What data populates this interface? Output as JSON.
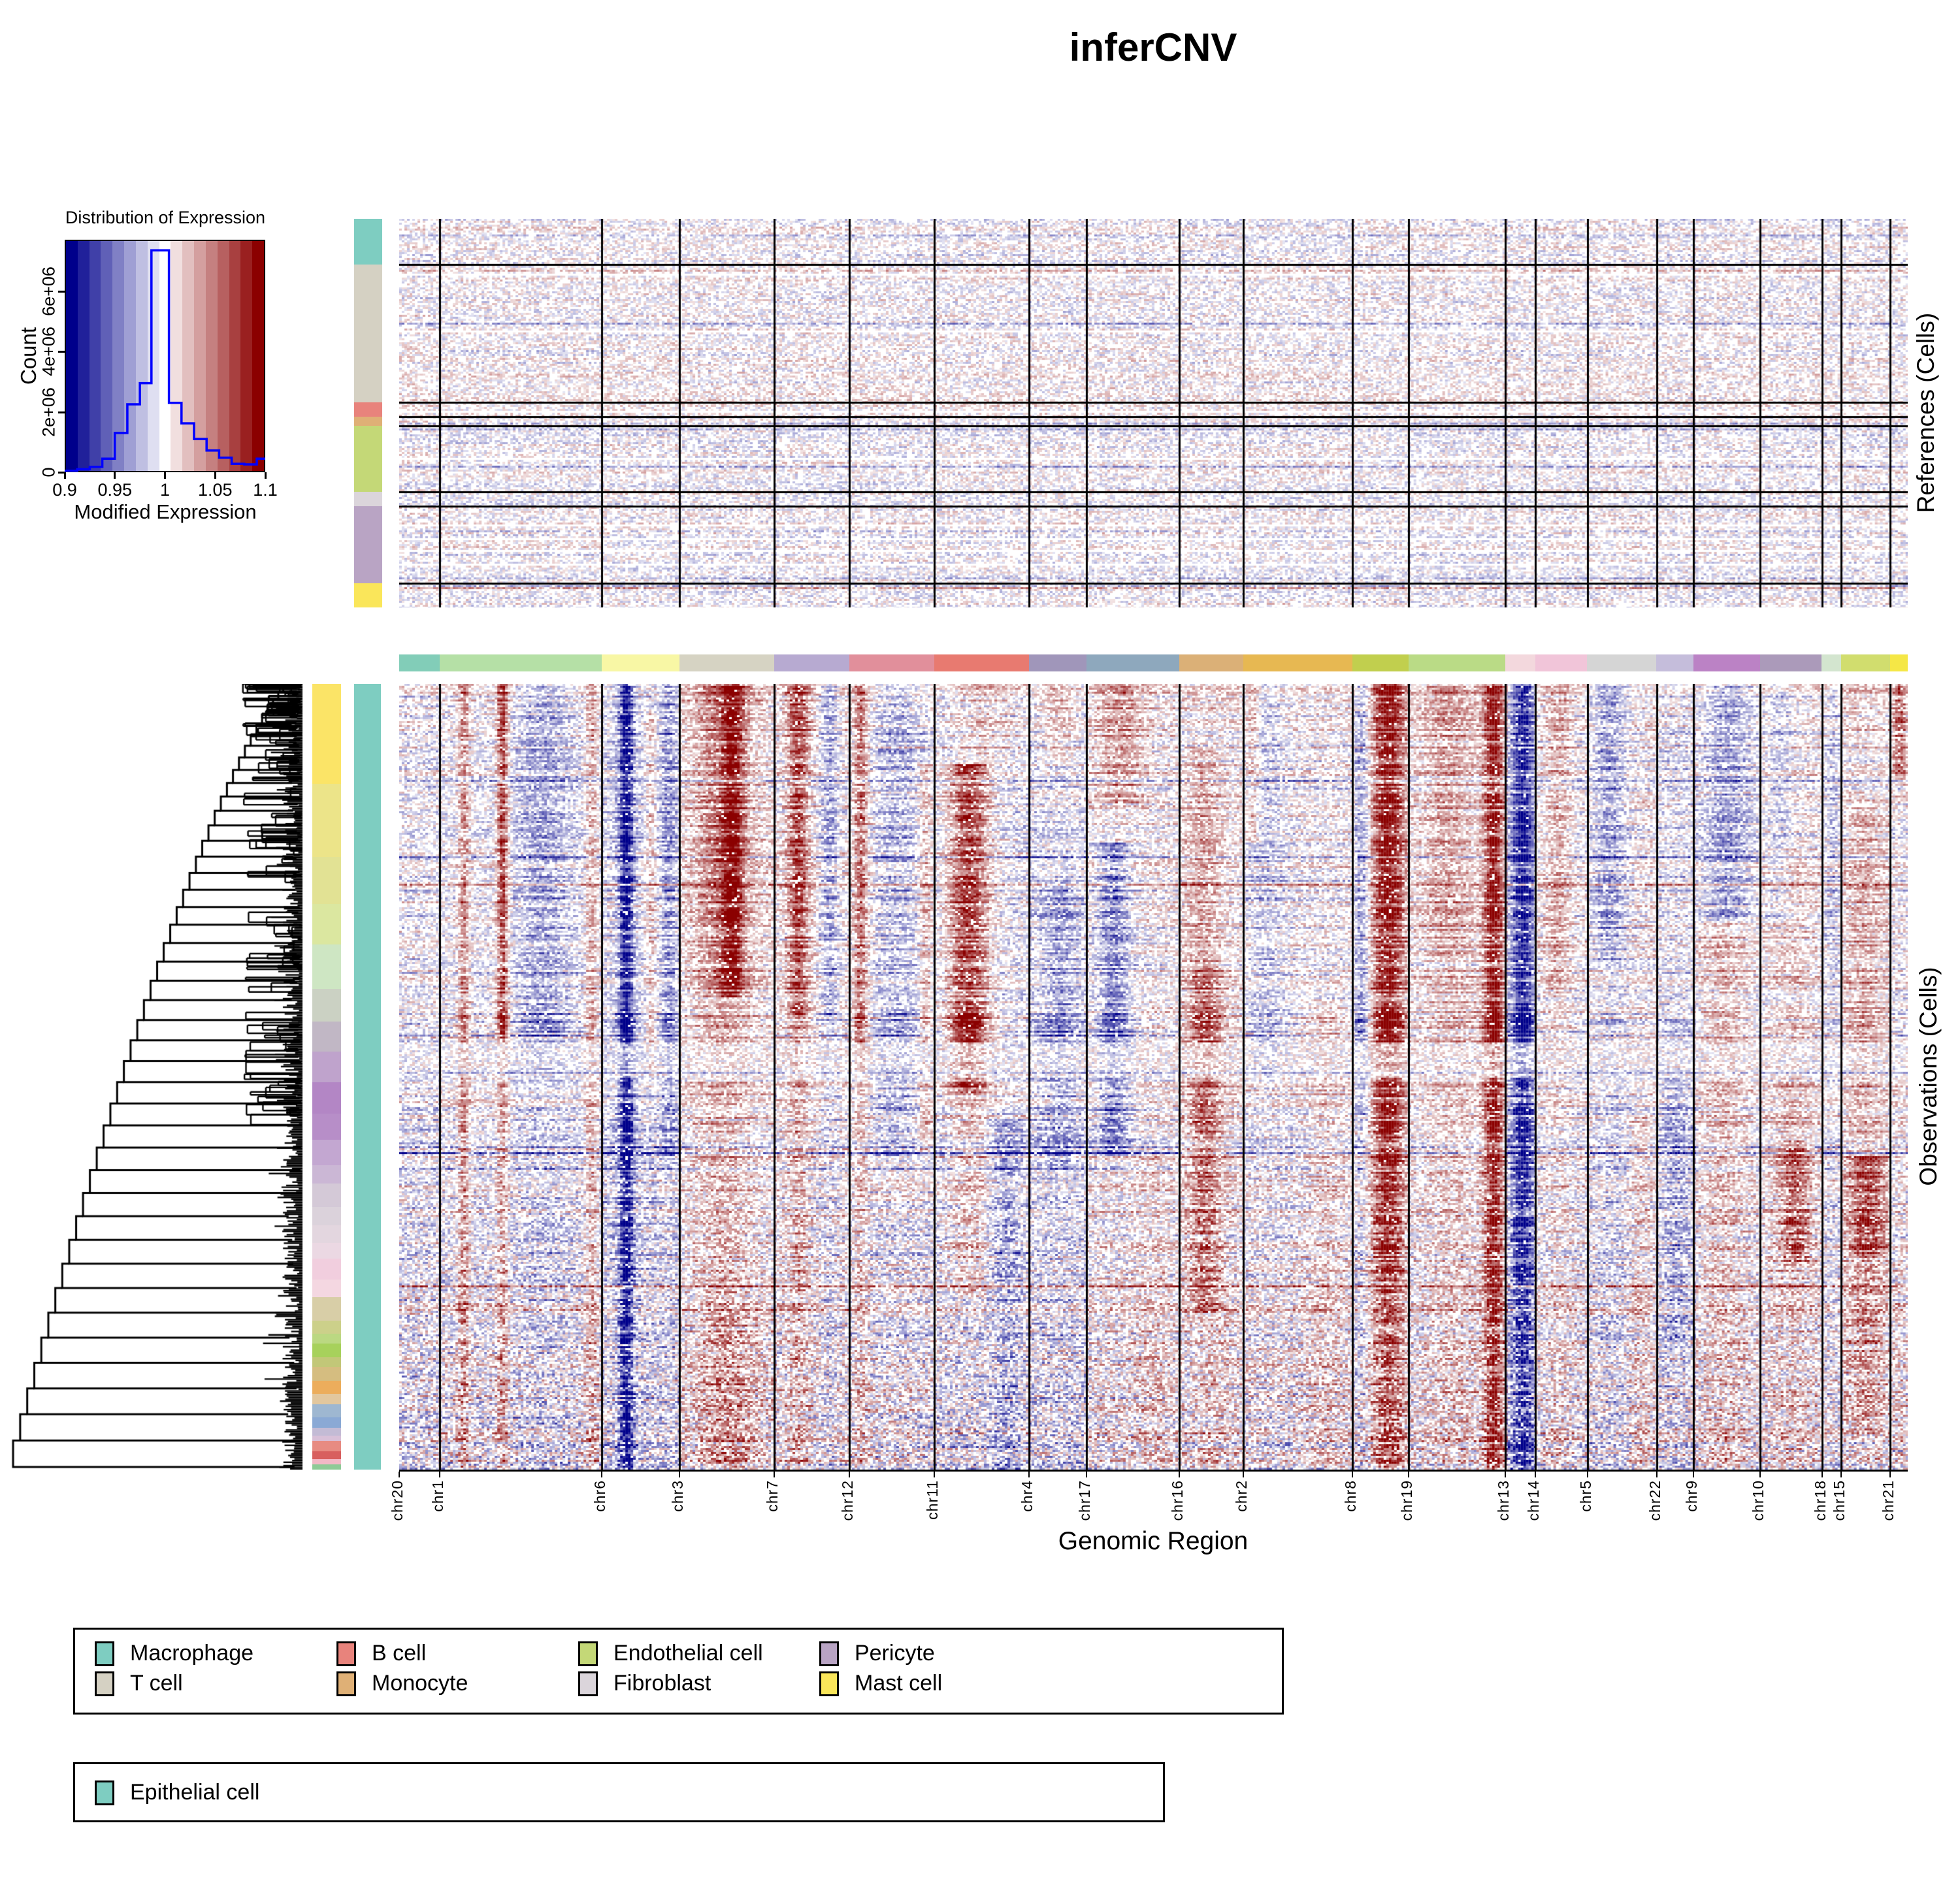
{
  "title": "inferCNV",
  "distribution": {
    "title": "Distribution of Expression",
    "xlabel": "Modified Expression",
    "ylabel": "Count",
    "xticks": [
      "0.9",
      "0.95",
      "1",
      "1.05",
      "1.1"
    ],
    "xtick_values": [
      0.9,
      0.95,
      1.0,
      1.05,
      1.1
    ],
    "yticks": [
      "0",
      "2e+06",
      "4e+06",
      "6e+06"
    ],
    "ytick_values": [
      0,
      2000000,
      4000000,
      6000000
    ],
    "line_color": "#0000ff"
  },
  "references": {
    "side_label": "References (Cells)"
  },
  "observations": {
    "side_label": "Observations (Cells)",
    "epithelial_bar_color": "#7ecdc1",
    "dendrogram": {
      "chain_joins": 44,
      "leaf_fringe_step": 2.6
    }
  },
  "xaxis": {
    "label": "Genomic Region"
  },
  "legend_celltypes": {
    "items": [
      {
        "label": "Macrophage",
        "color": "#7ecdc1"
      },
      {
        "label": "T cell",
        "color": "#d5d1c3"
      },
      {
        "label": "B cell",
        "color": "#e8837c"
      },
      {
        "label": "Monocyte",
        "color": "#dfb076"
      },
      {
        "label": "Endothelial cell",
        "color": "#c4d877"
      },
      {
        "label": "Fibroblast",
        "color": "#dbd5db"
      },
      {
        "label": "Pericyte",
        "color": "#b9a4c4"
      },
      {
        "label": "Mast cell",
        "color": "#fae65a"
      }
    ]
  },
  "legend_observations": {
    "items": [
      {
        "label": "Epithelial cell",
        "color": "#7ecdc1"
      }
    ]
  },
  "chart_data": {
    "type": "heatmap",
    "title": "inferCNV",
    "xlabel": "Genomic Region",
    "colormap": {
      "low": "#00008b",
      "mid": "#ffffff",
      "high": "#8b0000",
      "domain": [
        0.9,
        1.0,
        1.1
      ],
      "bands": 17
    },
    "expression_histogram": {
      "type": "histogram",
      "title": "Distribution of Expression",
      "xlabel": "Modified Expression",
      "ylabel": "Count",
      "xlim": [
        0.9,
        1.1
      ],
      "ylim": [
        0,
        7700000
      ],
      "bins": [
        [
          0.9,
          0.9125,
          50000
        ],
        [
          0.9125,
          0.925,
          100000
        ],
        [
          0.925,
          0.9375,
          180000
        ],
        [
          0.9375,
          0.95,
          450000
        ],
        [
          0.95,
          0.9625,
          1300000
        ],
        [
          0.9625,
          0.975,
          2250000
        ],
        [
          0.975,
          0.9865,
          2950000
        ],
        [
          0.9865,
          1.004,
          7350000
        ],
        [
          1.004,
          1.0165,
          2300000
        ],
        [
          1.0165,
          1.029,
          1620000
        ],
        [
          1.029,
          1.0415,
          1100000
        ],
        [
          1.0415,
          1.054,
          720000
        ],
        [
          1.054,
          1.0665,
          480000
        ],
        [
          1.0665,
          1.079,
          280000
        ],
        [
          1.079,
          1.0915,
          260000
        ],
        [
          1.0915,
          1.1,
          450000
        ]
      ]
    },
    "chromosomes": [
      {
        "name": "chr20",
        "width_frac": 0.0269,
        "bar_color": "#82cdb8",
        "cnv_base": -0.06,
        "cnv_bands": []
      },
      {
        "name": "chr1",
        "width_frac": 0.1074,
        "bar_color": "#b5e0a6",
        "cnv_base": -0.04,
        "cnv_bands": [
          {
            "p": 0.14,
            "w": 0.035,
            "v": 0.5,
            "r0": 0,
            "r1": 1
          },
          {
            "p": 0.38,
            "w": 0.035,
            "v": 0.85,
            "r0": 0,
            "r1": 0.45
          },
          {
            "p": 0.38,
            "w": 0.035,
            "v": 0.45,
            "r0": 0.45,
            "r1": 1
          },
          {
            "p": 0.63,
            "w": 0.18,
            "v": -0.3,
            "r0": 0,
            "r1": 0.5
          },
          {
            "p": 0.63,
            "w": 0.18,
            "v": -0.12,
            "r0": 0.5,
            "r1": 1
          },
          {
            "p": 0.93,
            "w": 0.04,
            "v": 0.35,
            "r0": 0,
            "r1": 1
          }
        ]
      },
      {
        "name": "chr6",
        "width_frac": 0.0515,
        "bar_color": "#f8f7a5",
        "cnv_base": -0.12,
        "cnv_bands": [
          {
            "p": 0.3,
            "w": 0.09,
            "v": -0.95,
            "r0": 0,
            "r1": 1
          },
          {
            "p": 0.62,
            "w": 0.07,
            "v": 0.3,
            "r0": 0.03,
            "r1": 0.5
          },
          {
            "p": 0.85,
            "w": 0.1,
            "v": -0.3,
            "r0": 0,
            "r1": 0.6
          }
        ]
      },
      {
        "name": "chr3",
        "width_frac": 0.0628,
        "bar_color": "#d6d3c3",
        "cnv_base": 0.05,
        "cnv_bands": [
          {
            "p": 0.45,
            "w": 0.3,
            "v": 0.5,
            "r0": 0,
            "r1": 0.4
          },
          {
            "p": 0.55,
            "w": 0.1,
            "v": 0.65,
            "r0": 0,
            "r1": 0.4
          },
          {
            "p": 0.45,
            "w": 0.3,
            "v": 0.25,
            "r0": 0.4,
            "r1": 0.8
          },
          {
            "p": 0.5,
            "w": 0.3,
            "v": 0.4,
            "r0": 0.8,
            "r1": 1
          }
        ]
      },
      {
        "name": "chr7",
        "width_frac": 0.0498,
        "bar_color": "#b7aad1",
        "cnv_base": 0.04,
        "cnv_bands": [
          {
            "p": 0.3,
            "w": 0.14,
            "v": 0.7,
            "r0": 0,
            "r1": 0.42
          },
          {
            "p": 0.3,
            "w": 0.14,
            "v": 0.3,
            "r0": 0.42,
            "r1": 1
          },
          {
            "p": 0.72,
            "w": 0.12,
            "v": -0.4,
            "r0": 0,
            "r1": 0.42
          },
          {
            "p": 0.72,
            "w": 0.12,
            "v": -0.12,
            "r0": 0.42,
            "r1": 1
          }
        ]
      },
      {
        "name": "chr12",
        "width_frac": 0.0563,
        "bar_color": "#e18f9b",
        "cnv_base": -0.03,
        "cnv_bands": [
          {
            "p": 0.12,
            "w": 0.09,
            "v": 0.6,
            "r0": 0,
            "r1": 0.5
          },
          {
            "p": 0.12,
            "w": 0.09,
            "v": 0.25,
            "r0": 0.5,
            "r1": 1
          },
          {
            "p": 0.55,
            "w": 0.28,
            "v": -0.22,
            "r0": 0,
            "r1": 0.6
          },
          {
            "p": 0.88,
            "w": 0.08,
            "v": 0.3,
            "r0": 0.1,
            "r1": 0.6
          }
        ]
      },
      {
        "name": "chr11",
        "width_frac": 0.0628,
        "bar_color": "#e87a70",
        "cnv_base": -0.08,
        "cnv_bands": [
          {
            "p": 0.35,
            "w": 0.22,
            "v": 0.85,
            "r0": 0.1,
            "r1": 0.52
          },
          {
            "p": 0.35,
            "w": 0.22,
            "v": 0.3,
            "r0": 0.52,
            "r1": 0.78
          },
          {
            "p": 0.5,
            "w": 0.3,
            "v": 0.2,
            "r0": 0,
            "r1": 0.1
          },
          {
            "p": 0.75,
            "w": 0.15,
            "v": -0.25,
            "r0": 0.55,
            "r1": 1
          }
        ]
      },
      {
        "name": "chr4",
        "width_frac": 0.0381,
        "bar_color": "#a096ba",
        "cnv_base": -0.1,
        "cnv_bands": [
          {
            "p": 0.5,
            "w": 0.35,
            "v": 0.3,
            "r0": 0,
            "r1": 0.1
          },
          {
            "p": 0.5,
            "w": 0.3,
            "v": -0.25,
            "r0": 0.25,
            "r1": 0.62
          }
        ]
      },
      {
        "name": "chr17",
        "width_frac": 0.0615,
        "bar_color": "#8ea8bd",
        "cnv_base": 0.03,
        "cnv_bands": [
          {
            "p": 0.35,
            "w": 0.25,
            "v": 0.35,
            "r0": 0,
            "r1": 0.15
          },
          {
            "p": 0.28,
            "w": 0.18,
            "v": -0.5,
            "r0": 0.2,
            "r1": 0.6
          },
          {
            "p": 0.7,
            "w": 0.2,
            "v": 0.15,
            "r0": 0.6,
            "r1": 1
          }
        ]
      },
      {
        "name": "chr16",
        "width_frac": 0.0424,
        "bar_color": "#dbb077",
        "cnv_base": 0.05,
        "cnv_bands": [
          {
            "p": 0.35,
            "w": 0.28,
            "v": 0.3,
            "r0": 0.08,
            "r1": 0.35
          },
          {
            "p": 0.38,
            "w": 0.28,
            "v": 0.55,
            "r0": 0.35,
            "r1": 0.8
          },
          {
            "p": 0.5,
            "w": 0.3,
            "v": 0.15,
            "r0": 0.8,
            "r1": 1
          }
        ]
      },
      {
        "name": "chr2",
        "width_frac": 0.0723,
        "bar_color": "#e7b852",
        "cnv_base": 0.0,
        "cnv_bands": [
          {
            "p": 0.2,
            "w": 0.18,
            "v": -0.2,
            "r0": 0,
            "r1": 0.5
          },
          {
            "p": 0.75,
            "w": 0.2,
            "v": 0.18,
            "r0": 0.4,
            "r1": 1
          },
          {
            "p": 0.08,
            "w": 0.06,
            "v": 0.3,
            "r0": 0,
            "r1": 0.2
          }
        ]
      },
      {
        "name": "chr8",
        "width_frac": 0.0372,
        "bar_color": "#c1cf4e",
        "cnv_base": 0.05,
        "cnv_bands": [
          {
            "p": 0.15,
            "w": 0.15,
            "v": -0.45,
            "r0": 0,
            "r1": 0.55
          },
          {
            "p": 0.15,
            "w": 0.15,
            "v": -0.2,
            "r0": 0.55,
            "r1": 1
          },
          {
            "p": 0.62,
            "w": 0.3,
            "v": 0.95,
            "r0": 0,
            "r1": 0.75
          },
          {
            "p": 0.62,
            "w": 0.3,
            "v": 0.7,
            "r0": 0.75,
            "r1": 1
          }
        ]
      },
      {
        "name": "chr19",
        "width_frac": 0.0641,
        "bar_color": "#badb86",
        "cnv_base": 0.06,
        "cnv_bands": [
          {
            "p": 0.4,
            "w": 0.25,
            "v": 0.3,
            "r0": 0,
            "r1": 0.35
          },
          {
            "p": 0.45,
            "w": 0.25,
            "v": 0.15,
            "r0": 0.35,
            "r1": 1
          },
          {
            "p": 0.87,
            "w": 0.1,
            "v": 0.95,
            "r0": 0,
            "r1": 1
          }
        ]
      },
      {
        "name": "chr13",
        "width_frac": 0.0199,
        "bar_color": "#f3d8dd",
        "cnv_base": -0.1,
        "cnv_bands": [
          {
            "p": 0.55,
            "w": 0.38,
            "v": -0.85,
            "r0": 0,
            "r1": 1
          }
        ]
      },
      {
        "name": "chr14",
        "width_frac": 0.0346,
        "bar_color": "#f1c5d9",
        "cnv_base": 0.0,
        "cnv_bands": [
          {
            "p": 0.4,
            "w": 0.25,
            "v": 0.3,
            "r0": 0,
            "r1": 0.4
          },
          {
            "p": 0.4,
            "w": 0.25,
            "v": 0.12,
            "r0": 0.4,
            "r1": 1
          }
        ]
      },
      {
        "name": "chr5",
        "width_frac": 0.0459,
        "bar_color": "#d5d5d5",
        "cnv_base": 0.02,
        "cnv_bands": [
          {
            "p": 0.3,
            "w": 0.25,
            "v": -0.4,
            "r0": 0,
            "r1": 0.35
          },
          {
            "p": 0.35,
            "w": 0.3,
            "v": -0.15,
            "r0": 0.35,
            "r1": 1
          },
          {
            "p": 0.75,
            "w": 0.15,
            "v": 0.2,
            "r0": 0.55,
            "r1": 1
          }
        ]
      },
      {
        "name": "chr22",
        "width_frac": 0.0243,
        "bar_color": "#c5bddb",
        "cnv_base": -0.08,
        "cnv_bands": [
          {
            "p": 0.5,
            "w": 0.35,
            "v": -0.25,
            "r0": 0.5,
            "r1": 0.85
          }
        ]
      },
      {
        "name": "chr9",
        "width_frac": 0.0442,
        "bar_color": "#bb82c5",
        "cnv_base": 0.0,
        "cnv_bands": [
          {
            "p": 0.5,
            "w": 0.35,
            "v": -0.35,
            "r0": 0,
            "r1": 0.3
          },
          {
            "p": 0.45,
            "w": 0.35,
            "v": 0.25,
            "r0": 0.3,
            "r1": 1
          }
        ]
      },
      {
        "name": "chr10",
        "width_frac": 0.0411,
        "bar_color": "#ab9aba",
        "cnv_base": 0.04,
        "cnv_bands": [
          {
            "p": 0.5,
            "w": 0.35,
            "v": 0.15,
            "r0": 0.2,
            "r1": 1
          },
          {
            "p": 0.55,
            "w": 0.25,
            "v": 0.55,
            "r0": 0.58,
            "r1": 0.74
          },
          {
            "p": 0.3,
            "w": 0.2,
            "v": -0.2,
            "r0": 0,
            "r1": 0.3
          }
        ]
      },
      {
        "name": "chr18",
        "width_frac": 0.0126,
        "bar_color": "#d3e5cf",
        "cnv_base": -0.04,
        "cnv_bands": [
          {
            "p": 0.5,
            "w": 0.3,
            "v": -0.15,
            "r0": 0,
            "r1": 0.4
          }
        ]
      },
      {
        "name": "chr15",
        "width_frac": 0.0325,
        "bar_color": "#d1dd6e",
        "cnv_base": 0.1,
        "cnv_bands": [
          {
            "p": 0.5,
            "w": 0.4,
            "v": 0.75,
            "r0": 0.6,
            "r1": 0.73
          },
          {
            "p": 0.5,
            "w": 0.4,
            "v": 0.3,
            "r0": 0.73,
            "r1": 0.95
          },
          {
            "p": 0.45,
            "w": 0.3,
            "v": 0.2,
            "r0": 0.15,
            "r1": 0.6
          }
        ]
      },
      {
        "name": "chr21",
        "width_frac": 0.0117,
        "bar_color": "#f5e746",
        "cnv_base": 0.0,
        "cnv_bands": [
          {
            "p": 0.5,
            "w": 0.4,
            "v": 0.6,
            "r0": 0,
            "r1": 0.12
          },
          {
            "p": 0.5,
            "w": 0.4,
            "v": 0.12,
            "r0": 0.5,
            "r1": 1
          }
        ]
      }
    ],
    "reference_groups": [
      {
        "name": "Macrophage",
        "color": "#7ecdc1",
        "frac": 0.118
      },
      {
        "name": "T cell",
        "color": "#d5d1c3",
        "frac": 0.354
      },
      {
        "name": "B cell",
        "color": "#e8837c",
        "frac": 0.037
      },
      {
        "name": "Monocyte",
        "color": "#dfb076",
        "frac": 0.024
      },
      {
        "name": "Endothelial cell",
        "color": "#c4d877",
        "frac": 0.169
      },
      {
        "name": "Fibroblast",
        "color": "#dbd5db",
        "frac": 0.037
      },
      {
        "name": "Pericyte",
        "color": "#b9a4c4",
        "frac": 0.199
      },
      {
        "name": "Mast cell",
        "color": "#fae65a",
        "frac": 0.062
      }
    ],
    "observation_subclusters": [
      {
        "color": "#fbe467",
        "frac": 0.127
      },
      {
        "color": "#ece489",
        "frac": 0.093
      },
      {
        "color": "#e2e294",
        "frac": 0.06
      },
      {
        "color": "#dbe7a0",
        "frac": 0.052
      },
      {
        "color": "#cee6c3",
        "frac": 0.056
      },
      {
        "color": "#cbd1c3",
        "frac": 0.042
      },
      {
        "color": "#c1b7c5",
        "frac": 0.038
      },
      {
        "color": "#bfa3cc",
        "frac": 0.039
      },
      {
        "color": "#b386c5",
        "frac": 0.04
      },
      {
        "color": "#b78ec8",
        "frac": 0.033
      },
      {
        "color": "#c3a7d1",
        "frac": 0.033
      },
      {
        "color": "#cbb7d5",
        "frac": 0.023
      },
      {
        "color": "#d4c9d7",
        "frac": 0.03
      },
      {
        "color": "#dbd2db",
        "frac": 0.023
      },
      {
        "color": "#e3d6df",
        "frac": 0.023
      },
      {
        "color": "#ebd8e3",
        "frac": 0.02
      },
      {
        "color": "#f1cede",
        "frac": 0.026
      },
      {
        "color": "#f4d7e1",
        "frac": 0.023
      },
      {
        "color": "#d8cea7",
        "frac": 0.03
      },
      {
        "color": "#ccd08a",
        "frac": 0.016
      },
      {
        "color": "#bbd882",
        "frac": 0.013
      },
      {
        "color": "#a7d15c",
        "frac": 0.017
      },
      {
        "color": "#c2c778",
        "frac": 0.013
      },
      {
        "color": "#d5bd80",
        "frac": 0.017
      },
      {
        "color": "#ecad5c",
        "frac": 0.017
      },
      {
        "color": "#e2c79e",
        "frac": 0.013
      },
      {
        "color": "#9eb7d1",
        "frac": 0.017
      },
      {
        "color": "#8aa9d5",
        "frac": 0.013
      },
      {
        "color": "#c3bbd5",
        "frac": 0.01
      },
      {
        "color": "#d8c0d8",
        "frac": 0.007
      },
      {
        "color": "#e78b82",
        "frac": 0.013
      },
      {
        "color": "#d85f5f",
        "frac": 0.01
      },
      {
        "color": "#f2b8c6",
        "frac": 0.007
      },
      {
        "color": "#8eca97",
        "frac": 0.006
      }
    ]
  }
}
